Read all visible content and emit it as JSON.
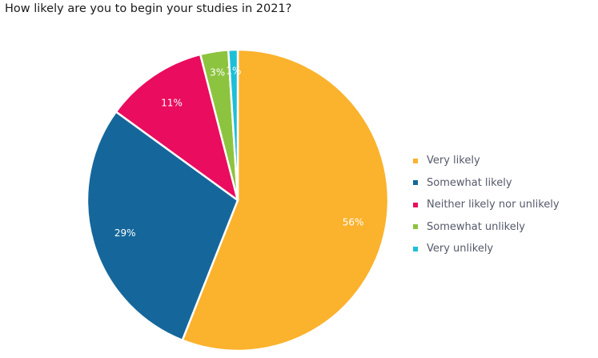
{
  "chart_data": {
    "type": "pie",
    "title": "How likely are you to begin your studies in 2021?",
    "categories": [
      "Very likely",
      "Somewhat likely",
      "Neither likely nor unlikely",
      "Somewhat unlikely",
      "Very unlikely"
    ],
    "values": [
      56,
      29,
      11,
      3,
      1
    ],
    "labels": [
      "56%",
      "29%",
      "11%",
      "3%",
      "1%"
    ],
    "colors": [
      "#fbb22c",
      "#15679b",
      "#ea0c5e",
      "#8cc43f",
      "#1dbfd6"
    ],
    "legend_position": "right",
    "start_angle": "12 o'clock, clockwise"
  },
  "legend": {
    "items": [
      {
        "label": "Very likely",
        "color": "#fbb22c"
      },
      {
        "label": "Somewhat likely",
        "color": "#15679b"
      },
      {
        "label": "Neither likely nor unlikely",
        "color": "#ea0c5e"
      },
      {
        "label": "Somewhat unlikely",
        "color": "#8cc43f"
      },
      {
        "label": "Very unlikely",
        "color": "#1dbfd6"
      }
    ]
  }
}
